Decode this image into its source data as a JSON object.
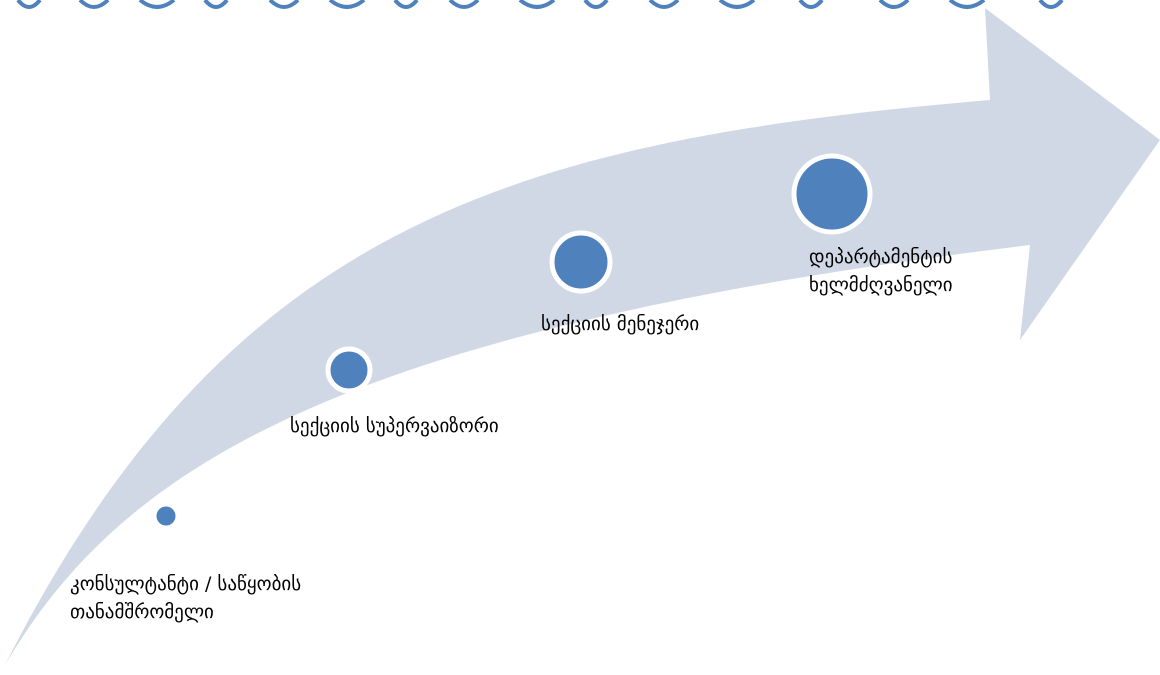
{
  "colors": {
    "arrow": "#d0d8e6",
    "dot": "#4f81bd",
    "dot_ring": "#ffffff",
    "top_band": "#4f81bd",
    "text": "#000000"
  },
  "steps": [
    {
      "label_lines": [
        "კონსულტანტი / საწყობის",
        "თანამშრომელი"
      ]
    },
    {
      "label_lines": [
        "სექციის სუპერვაიზორი"
      ]
    },
    {
      "label_lines": [
        "სექციის მენეჯერი"
      ]
    },
    {
      "label_lines": [
        "დეპარტამენტის",
        "ხელმძღვანელი"
      ]
    }
  ]
}
